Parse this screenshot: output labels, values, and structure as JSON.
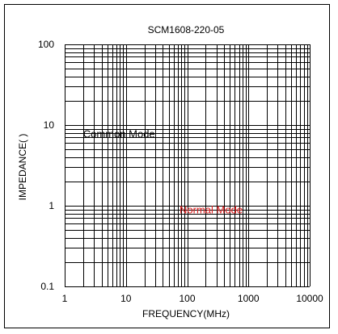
{
  "chart_data": {
    "type": "line",
    "title": "SCM1608-220-05",
    "xlabel": "FREQUENCY(MHz)",
    "ylabel": "IMPEDANCE(   )",
    "x_scale": "log",
    "y_scale": "log",
    "xlim": [
      1,
      10000
    ],
    "ylim": [
      0.1,
      100
    ],
    "x_ticks": [
      "1",
      "10",
      "100",
      "1000",
      "10000"
    ],
    "y_ticks": [
      "0.1",
      "1",
      "10",
      "100"
    ],
    "grid": true,
    "series": [],
    "annotations": [
      {
        "text": "Common Mode",
        "color": "#000000",
        "x": 2,
        "y": 7
      },
      {
        "text": "Normal Mode",
        "color": "#e02020",
        "x": 75,
        "y": 0.8
      }
    ]
  }
}
